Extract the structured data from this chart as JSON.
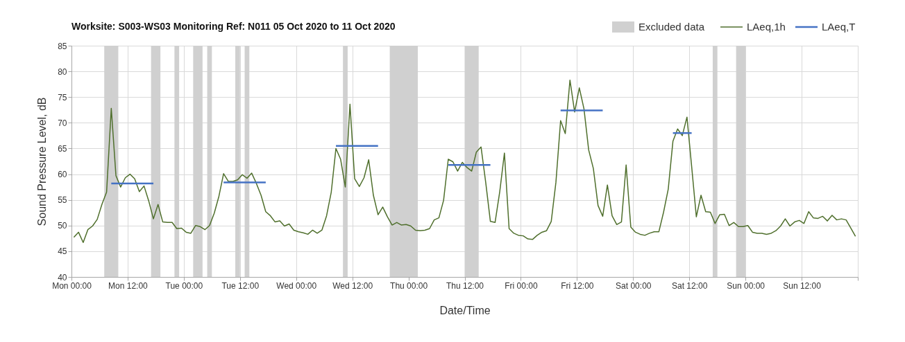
{
  "chart_data": {
    "type": "line",
    "title": "Worksite: S003-WS03    Monitoring Ref: N011    05 Oct 2020 to 11 Oct 2020",
    "xlabel": "Date/Time",
    "ylabel": "Sound Pressure Level, dB",
    "xlim": [
      "2020-10-05T00:00",
      "2020-10-12T00:00"
    ],
    "ylim": [
      40,
      85
    ],
    "xticks": [
      {
        "value": "2020-10-05T00:00",
        "label": "Mon 00:00"
      },
      {
        "value": "2020-10-05T12:00",
        "label": "Mon 12:00"
      },
      {
        "value": "2020-10-06T00:00",
        "label": "Tue 00:00"
      },
      {
        "value": "2020-10-06T12:00",
        "label": "Tue 12:00"
      },
      {
        "value": "2020-10-07T00:00",
        "label": "Wed 00:00"
      },
      {
        "value": "2020-10-07T12:00",
        "label": "Wed 12:00"
      },
      {
        "value": "2020-10-08T00:00",
        "label": "Thu 00:00"
      },
      {
        "value": "2020-10-08T12:00",
        "label": "Thu 12:00"
      },
      {
        "value": "2020-10-09T00:00",
        "label": "Fri 00:00"
      },
      {
        "value": "2020-10-09T12:00",
        "label": "Fri 12:00"
      },
      {
        "value": "2020-10-10T00:00",
        "label": "Sat 00:00"
      },
      {
        "value": "2020-10-10T12:00",
        "label": "Sat 12:00"
      },
      {
        "value": "2020-10-11T00:00",
        "label": "Sun 00:00"
      },
      {
        "value": "2020-10-11T12:00",
        "label": "Sun 12:00"
      },
      {
        "value": "2020-10-12T00:00",
        "label": null
      }
    ],
    "yticks": [
      40,
      45,
      50,
      55,
      60,
      65,
      70,
      75,
      80,
      85
    ],
    "grid": true,
    "legend": "top right",
    "bands": [
      {
        "axis": "x",
        "from": "2020-10-05T07:00",
        "to": "2020-10-05T10:00",
        "label": "Excluded data",
        "color": "#d0d0d0"
      },
      {
        "axis": "x",
        "from": "2020-10-05T17:00",
        "to": "2020-10-05T19:00",
        "color": "#d0d0d0"
      },
      {
        "axis": "x",
        "from": "2020-10-05T22:00",
        "to": "2020-10-05T23:00",
        "color": "#d0d0d0"
      },
      {
        "axis": "x",
        "from": "2020-10-06T02:00",
        "to": "2020-10-06T04:00",
        "color": "#d0d0d0"
      },
      {
        "axis": "x",
        "from": "2020-10-06T05:00",
        "to": "2020-10-06T06:00",
        "color": "#d0d0d0"
      },
      {
        "axis": "x",
        "from": "2020-10-06T11:00",
        "to": "2020-10-06T12:00",
        "color": "#d0d0d0"
      },
      {
        "axis": "x",
        "from": "2020-10-06T13:00",
        "to": "2020-10-06T14:00",
        "color": "#d0d0d0"
      },
      {
        "axis": "x",
        "from": "2020-10-07T10:00",
        "to": "2020-10-07T11:00",
        "color": "#d0d0d0"
      },
      {
        "axis": "x",
        "from": "2020-10-07T20:00",
        "to": "2020-10-08T02:00",
        "color": "#d0d0d0"
      },
      {
        "axis": "x",
        "from": "2020-10-08T12:00",
        "to": "2020-10-08T15:00",
        "color": "#d0d0d0"
      },
      {
        "axis": "x",
        "from": "2020-10-10T17:00",
        "to": "2020-10-10T18:00",
        "color": "#d0d0d0"
      },
      {
        "axis": "x",
        "from": "2020-10-10T22:00",
        "to": "2020-10-11T00:00",
        "color": "#d0d0d0"
      }
    ],
    "series": [
      {
        "name": "LAeq,1h",
        "color": "#4f6f2c",
        "x": [
          "2020-10-05T00:30",
          "2020-10-05T01:30",
          "2020-10-05T02:30",
          "2020-10-05T03:30",
          "2020-10-05T04:30",
          "2020-10-05T05:30",
          "2020-10-05T06:30",
          "2020-10-05T07:30",
          "2020-10-05T08:30",
          "2020-10-05T09:30",
          "2020-10-05T10:30",
          "2020-10-05T11:30",
          "2020-10-05T12:30",
          "2020-10-05T13:30",
          "2020-10-05T14:30",
          "2020-10-05T15:30",
          "2020-10-05T16:30",
          "2020-10-05T17:30",
          "2020-10-05T18:30",
          "2020-10-05T19:30",
          "2020-10-05T20:30",
          "2020-10-05T21:30",
          "2020-10-05T22:30",
          "2020-10-05T23:30",
          "2020-10-06T00:30",
          "2020-10-06T01:30",
          "2020-10-06T02:30",
          "2020-10-06T03:30",
          "2020-10-06T04:30",
          "2020-10-06T05:30",
          "2020-10-06T06:30",
          "2020-10-06T07:30",
          "2020-10-06T08:30",
          "2020-10-06T09:30",
          "2020-10-06T10:30",
          "2020-10-06T11:30",
          "2020-10-06T12:30",
          "2020-10-06T13:30",
          "2020-10-06T14:30",
          "2020-10-06T15:30",
          "2020-10-06T16:30",
          "2020-10-06T17:30",
          "2020-10-06T18:30",
          "2020-10-06T19:30",
          "2020-10-06T20:30",
          "2020-10-06T21:30",
          "2020-10-06T22:30",
          "2020-10-06T23:30",
          "2020-10-07T00:30",
          "2020-10-07T01:30",
          "2020-10-07T02:30",
          "2020-10-07T03:30",
          "2020-10-07T04:30",
          "2020-10-07T05:30",
          "2020-10-07T06:30",
          "2020-10-07T07:30",
          "2020-10-07T08:30",
          "2020-10-07T09:30",
          "2020-10-07T10:30",
          "2020-10-07T11:30",
          "2020-10-07T12:30",
          "2020-10-07T13:30",
          "2020-10-07T14:30",
          "2020-10-07T15:30",
          "2020-10-07T16:30",
          "2020-10-07T17:30",
          "2020-10-07T18:30",
          "2020-10-07T19:30",
          "2020-10-07T20:30",
          "2020-10-07T21:30",
          "2020-10-07T22:30",
          "2020-10-07T23:30",
          "2020-10-08T00:30",
          "2020-10-08T01:30",
          "2020-10-08T02:30",
          "2020-10-08T03:30",
          "2020-10-08T04:30",
          "2020-10-08T05:30",
          "2020-10-08T06:30",
          "2020-10-08T07:30",
          "2020-10-08T08:30",
          "2020-10-08T09:30",
          "2020-10-08T10:30",
          "2020-10-08T11:30",
          "2020-10-08T12:30",
          "2020-10-08T13:30",
          "2020-10-08T14:30",
          "2020-10-08T15:30",
          "2020-10-08T16:30",
          "2020-10-08T17:30",
          "2020-10-08T18:30",
          "2020-10-08T19:30",
          "2020-10-08T20:30",
          "2020-10-08T21:30",
          "2020-10-08T22:30",
          "2020-10-08T23:30",
          "2020-10-09T00:30",
          "2020-10-09T01:30",
          "2020-10-09T02:30",
          "2020-10-09T03:30",
          "2020-10-09T04:30",
          "2020-10-09T05:30",
          "2020-10-09T06:30",
          "2020-10-09T07:30",
          "2020-10-09T08:30",
          "2020-10-09T09:30",
          "2020-10-09T10:30",
          "2020-10-09T11:30",
          "2020-10-09T12:30",
          "2020-10-09T13:30",
          "2020-10-09T14:30",
          "2020-10-09T15:30",
          "2020-10-09T16:30",
          "2020-10-09T17:30",
          "2020-10-09T18:30",
          "2020-10-09T19:30",
          "2020-10-09T20:30",
          "2020-10-09T21:30",
          "2020-10-09T22:30",
          "2020-10-09T23:30",
          "2020-10-10T00:30",
          "2020-10-10T01:30",
          "2020-10-10T02:30",
          "2020-10-10T03:30",
          "2020-10-10T04:30",
          "2020-10-10T05:30",
          "2020-10-10T06:30",
          "2020-10-10T07:30",
          "2020-10-10T08:30",
          "2020-10-10T09:30",
          "2020-10-10T10:30",
          "2020-10-10T11:30",
          "2020-10-10T12:30",
          "2020-10-10T13:30",
          "2020-10-10T14:30",
          "2020-10-10T15:30",
          "2020-10-10T16:30",
          "2020-10-10T17:30",
          "2020-10-10T18:30",
          "2020-10-10T19:30",
          "2020-10-10T20:30",
          "2020-10-10T21:30",
          "2020-10-10T22:30",
          "2020-10-10T23:30",
          "2020-10-11T00:30",
          "2020-10-11T01:30",
          "2020-10-11T02:30",
          "2020-10-11T03:30",
          "2020-10-11T04:30",
          "2020-10-11T05:30",
          "2020-10-11T06:30",
          "2020-10-11T07:30",
          "2020-10-11T08:30",
          "2020-10-11T09:30",
          "2020-10-11T10:30",
          "2020-10-11T11:30",
          "2020-10-11T12:30",
          "2020-10-11T13:30",
          "2020-10-11T14:30",
          "2020-10-11T15:30",
          "2020-10-11T16:30",
          "2020-10-11T17:30",
          "2020-10-11T18:30",
          "2020-10-11T19:30",
          "2020-10-11T20:30",
          "2020-10-11T21:30",
          "2020-10-11T22:30",
          "2020-10-11T23:30"
        ],
        "values": [
          47.7,
          48.7,
          46.7,
          49.2,
          49.9,
          51.2,
          54.1,
          56.5,
          72.8,
          59.7,
          57.5,
          59.3,
          60.0,
          59.1,
          56.6,
          57.7,
          54.8,
          51.3,
          54.1,
          50.7,
          50.6,
          50.6,
          49.4,
          49.5,
          48.7,
          48.5,
          50.0,
          49.8,
          49.2,
          50.0,
          52.4,
          55.7,
          60.1,
          58.6,
          58.6,
          58.9,
          59.9,
          59.2,
          60.2,
          58.2,
          55.9,
          52.7,
          51.9,
          50.7,
          50.9,
          49.9,
          50.3,
          49.1,
          48.8,
          48.6,
          48.3,
          49.1,
          48.5,
          49.1,
          51.9,
          56.5,
          65.0,
          62.9,
          57.5,
          73.6,
          59.1,
          57.6,
          59.3,
          62.8,
          55.9,
          52.1,
          53.6,
          51.7,
          50.1,
          50.6,
          50.1,
          50.2,
          49.9,
          49.1,
          49.0,
          49.1,
          49.4,
          51.1,
          51.5,
          54.9,
          62.9,
          62.4,
          60.6,
          62.3,
          61.3,
          60.6,
          64.3,
          65.3,
          58.4,
          50.8,
          50.6,
          56.6,
          64.1,
          49.4,
          48.5,
          48.1,
          48.0,
          47.4,
          47.3,
          48.1,
          48.7,
          49.0,
          50.8,
          58.4,
          70.4,
          67.9,
          78.3,
          72.1,
          76.8,
          72.7,
          64.7,
          61.1,
          53.9,
          51.8,
          57.9,
          51.9,
          50.2,
          50.7,
          61.8,
          49.7,
          48.7,
          48.3,
          48.1,
          48.5,
          48.8,
          48.8,
          52.6,
          57.1,
          66.4,
          68.8,
          67.5,
          71.1,
          61.5,
          51.7,
          55.9,
          52.7,
          52.6,
          50.4,
          52.1,
          52.2,
          50.0,
          50.6,
          49.8,
          49.8,
          50.0,
          48.7,
          48.5,
          48.5,
          48.3,
          48.5,
          49.0,
          49.9,
          51.3,
          49.9,
          50.7,
          51.0,
          50.4,
          52.7,
          51.5,
          51.4,
          51.8,
          50.9,
          52.0,
          51.1,
          51.3,
          51.1,
          49.5,
          47.9
        ]
      },
      {
        "name": "LAeq,T",
        "color": "#4472c4",
        "x": [
          "2020-10-05T08:30",
          "2020-10-05T17:30",
          "2020-10-06T01:00",
          "2020-10-06T08:30",
          "2020-10-06T17:30",
          "2020-10-07T01:00",
          "2020-10-07T08:30",
          "2020-10-07T17:30",
          "2020-10-08T01:00",
          "2020-10-08T08:30",
          "2020-10-08T17:30",
          "2020-10-09T01:00",
          "2020-10-09T08:30",
          "2020-10-09T17:30",
          "2020-10-10T01:00",
          "2020-10-10T08:30",
          "2020-10-10T12:30"
        ],
        "values": [
          58.2,
          58.2,
          null,
          58.4,
          58.4,
          null,
          65.5,
          65.5,
          null,
          61.8,
          61.8,
          null,
          72.4,
          72.4,
          null,
          68.0,
          68.0
        ]
      }
    ]
  }
}
